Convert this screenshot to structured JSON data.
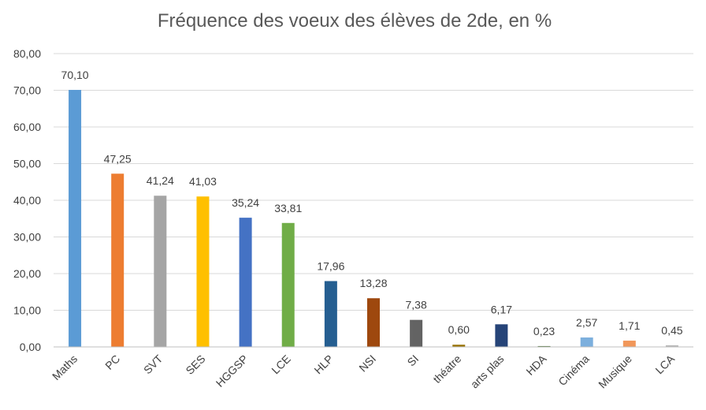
{
  "chart_data": {
    "type": "bar",
    "title": "Fréquence des voeux des élèves de 2de, en %",
    "xlabel": "",
    "ylabel": "",
    "ylim": [
      0,
      80
    ],
    "yticks": [
      "0,00",
      "10,00",
      "20,00",
      "30,00",
      "40,00",
      "50,00",
      "60,00",
      "70,00",
      "80,00"
    ],
    "grid": true,
    "legend": "none",
    "categories": [
      "Maths",
      "PC",
      "SVT",
      "SES",
      "HGGSP",
      "LCE",
      "HLP",
      "NSI",
      "SI",
      "théatre",
      "arts plas",
      "HDA",
      "Cinéma",
      "Musique",
      "LCA"
    ],
    "values": [
      70.1,
      47.25,
      41.24,
      41.03,
      35.24,
      33.81,
      17.96,
      13.28,
      7.38,
      0.6,
      6.17,
      0.23,
      2.57,
      1.71,
      0.45
    ],
    "data_labels": [
      "70,10",
      "47,25",
      "41,24",
      "41,03",
      "35,24",
      "33,81",
      "17,96",
      "13,28",
      "7,38",
      "0,60",
      "6,17",
      "0,23",
      "2,57",
      "1,71",
      "0,45"
    ],
    "colors": [
      "#5b9bd5",
      "#ed7d31",
      "#a5a5a5",
      "#ffc000",
      "#4472c4",
      "#70ad47",
      "#255e91",
      "#9e480e",
      "#636363",
      "#997300",
      "#264478",
      "#43682b",
      "#7cafdd",
      "#f1975a",
      "#b7b7b7"
    ]
  }
}
